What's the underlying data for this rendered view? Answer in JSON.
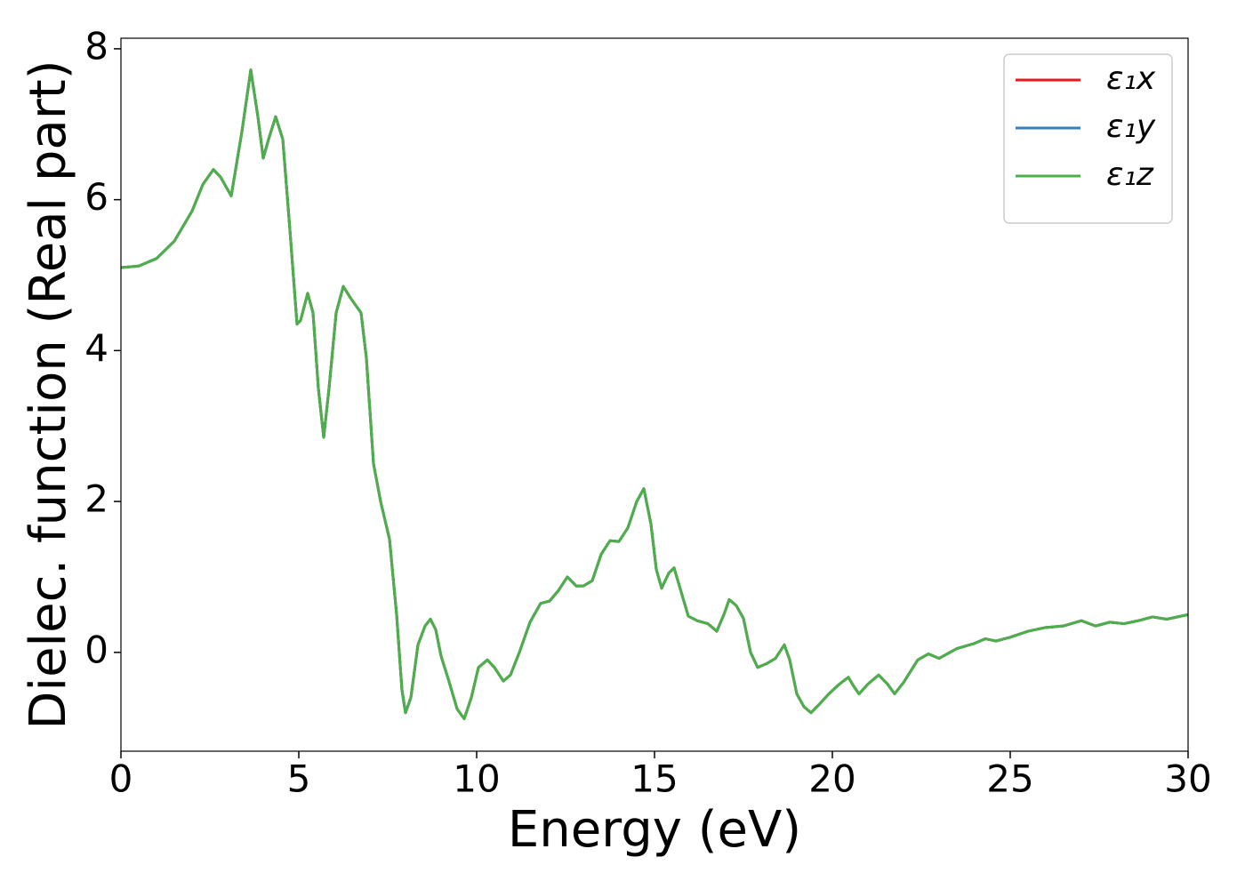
{
  "chart_data": {
    "type": "line",
    "xlabel": "Energy (eV)",
    "ylabel": "Dielec. function (Real part)",
    "xlim": [
      0,
      30
    ],
    "ylim": [
      -1.31,
      8.14
    ],
    "xticks": [
      0,
      5,
      10,
      15,
      20,
      25,
      30
    ],
    "yticks": [
      0,
      2,
      4,
      6,
      8
    ],
    "legend": "upper right",
    "x": [
      0,
      0.5,
      1.0,
      1.5,
      2.0,
      2.3,
      2.6,
      2.8,
      3.1,
      3.4,
      3.65,
      3.85,
      4.0,
      4.15,
      4.35,
      4.55,
      4.75,
      4.95,
      5.05,
      5.25,
      5.4,
      5.55,
      5.7,
      5.85,
      6.05,
      6.25,
      6.45,
      6.6,
      6.75,
      6.9,
      7.1,
      7.3,
      7.55,
      7.75,
      7.9,
      8.0,
      8.15,
      8.35,
      8.55,
      8.7,
      8.85,
      9.0,
      9.2,
      9.45,
      9.65,
      9.85,
      10.05,
      10.3,
      10.5,
      10.75,
      10.95,
      11.2,
      11.5,
      11.8,
      12.05,
      12.3,
      12.55,
      12.8,
      13.0,
      13.25,
      13.5,
      13.75,
      14.0,
      14.25,
      14.5,
      14.7,
      14.9,
      15.05,
      15.2,
      15.4,
      15.55,
      15.75,
      15.95,
      16.2,
      16.5,
      16.75,
      16.95,
      17.1,
      17.3,
      17.5,
      17.7,
      17.9,
      18.15,
      18.4,
      18.65,
      18.8,
      19.0,
      19.2,
      19.4,
      19.65,
      19.9,
      20.2,
      20.45,
      20.6,
      20.75,
      21.0,
      21.3,
      21.55,
      21.75,
      22.0,
      22.4,
      22.7,
      23.0,
      23.5,
      24.0,
      24.3,
      24.6,
      25.0,
      25.5,
      26.0,
      26.5,
      27.0,
      27.4,
      27.8,
      28.2,
      28.6,
      29.0,
      29.4,
      30.0
    ],
    "series": [
      {
        "name": "ε₁x",
        "color": "#e41a1c",
        "values": [
          5.1,
          5.12,
          5.22,
          5.45,
          5.85,
          6.2,
          6.4,
          6.3,
          6.05,
          6.9,
          7.72,
          7.1,
          6.55,
          6.8,
          7.1,
          6.8,
          5.6,
          4.35,
          4.4,
          4.76,
          4.5,
          3.5,
          2.85,
          3.5,
          4.5,
          4.85,
          4.7,
          4.6,
          4.5,
          3.9,
          2.5,
          2.0,
          1.5,
          0.5,
          -0.5,
          -0.8,
          -0.6,
          0.1,
          0.35,
          0.44,
          0.3,
          -0.05,
          -0.35,
          -0.75,
          -0.88,
          -0.6,
          -0.2,
          -0.1,
          -0.2,
          -0.38,
          -0.3,
          0.0,
          0.4,
          0.65,
          0.68,
          0.82,
          1.0,
          0.88,
          0.88,
          0.95,
          1.3,
          1.48,
          1.47,
          1.65,
          2.0,
          2.17,
          1.7,
          1.1,
          0.85,
          1.05,
          1.12,
          0.8,
          0.48,
          0.42,
          0.38,
          0.28,
          0.5,
          0.7,
          0.62,
          0.45,
          0.0,
          -0.2,
          -0.15,
          -0.08,
          0.1,
          -0.1,
          -0.55,
          -0.72,
          -0.8,
          -0.68,
          -0.55,
          -0.42,
          -0.33,
          -0.45,
          -0.55,
          -0.42,
          -0.3,
          -0.42,
          -0.55,
          -0.4,
          -0.1,
          -0.02,
          -0.08,
          0.05,
          0.12,
          0.18,
          0.15,
          0.2,
          0.28,
          0.33,
          0.35,
          0.42,
          0.35,
          0.4,
          0.38,
          0.42,
          0.47,
          0.44,
          0.5
        ]
      },
      {
        "name": "ε₁y",
        "color": "#377eb8",
        "values": [
          5.1,
          5.12,
          5.22,
          5.45,
          5.85,
          6.2,
          6.4,
          6.3,
          6.05,
          6.9,
          7.72,
          7.1,
          6.55,
          6.8,
          7.1,
          6.8,
          5.6,
          4.35,
          4.4,
          4.76,
          4.5,
          3.5,
          2.85,
          3.5,
          4.5,
          4.85,
          4.7,
          4.6,
          4.5,
          3.9,
          2.5,
          2.0,
          1.5,
          0.5,
          -0.5,
          -0.8,
          -0.6,
          0.1,
          0.35,
          0.44,
          0.3,
          -0.05,
          -0.35,
          -0.75,
          -0.88,
          -0.6,
          -0.2,
          -0.1,
          -0.2,
          -0.38,
          -0.3,
          0.0,
          0.4,
          0.65,
          0.68,
          0.82,
          1.0,
          0.88,
          0.88,
          0.95,
          1.3,
          1.48,
          1.47,
          1.65,
          2.0,
          2.17,
          1.7,
          1.1,
          0.85,
          1.05,
          1.12,
          0.8,
          0.48,
          0.42,
          0.38,
          0.28,
          0.5,
          0.7,
          0.62,
          0.45,
          0.0,
          -0.2,
          -0.15,
          -0.08,
          0.1,
          -0.1,
          -0.55,
          -0.72,
          -0.8,
          -0.68,
          -0.55,
          -0.42,
          -0.33,
          -0.45,
          -0.55,
          -0.42,
          -0.3,
          -0.42,
          -0.55,
          -0.4,
          -0.1,
          -0.02,
          -0.08,
          0.05,
          0.12,
          0.18,
          0.15,
          0.2,
          0.28,
          0.33,
          0.35,
          0.42,
          0.35,
          0.4,
          0.38,
          0.42,
          0.47,
          0.44,
          0.5
        ]
      },
      {
        "name": "ε₁z",
        "color": "#4daf4a",
        "values": [
          5.1,
          5.12,
          5.22,
          5.45,
          5.85,
          6.2,
          6.4,
          6.3,
          6.05,
          6.9,
          7.72,
          7.1,
          6.55,
          6.8,
          7.1,
          6.8,
          5.6,
          4.35,
          4.4,
          4.76,
          4.5,
          3.5,
          2.85,
          3.5,
          4.5,
          4.85,
          4.7,
          4.6,
          4.5,
          3.9,
          2.5,
          2.0,
          1.5,
          0.5,
          -0.5,
          -0.8,
          -0.6,
          0.1,
          0.35,
          0.44,
          0.3,
          -0.05,
          -0.35,
          -0.75,
          -0.88,
          -0.6,
          -0.2,
          -0.1,
          -0.2,
          -0.38,
          -0.3,
          0.0,
          0.4,
          0.65,
          0.68,
          0.82,
          1.0,
          0.88,
          0.88,
          0.95,
          1.3,
          1.48,
          1.47,
          1.65,
          2.0,
          2.17,
          1.7,
          1.1,
          0.85,
          1.05,
          1.12,
          0.8,
          0.48,
          0.42,
          0.38,
          0.28,
          0.5,
          0.7,
          0.62,
          0.45,
          0.0,
          -0.2,
          -0.15,
          -0.08,
          0.1,
          -0.1,
          -0.55,
          -0.72,
          -0.8,
          -0.68,
          -0.55,
          -0.42,
          -0.33,
          -0.45,
          -0.55,
          -0.42,
          -0.3,
          -0.42,
          -0.55,
          -0.4,
          -0.1,
          -0.02,
          -0.08,
          0.05,
          0.12,
          0.18,
          0.15,
          0.2,
          0.28,
          0.33,
          0.35,
          0.42,
          0.35,
          0.4,
          0.38,
          0.42,
          0.47,
          0.44,
          0.5
        ]
      }
    ]
  }
}
